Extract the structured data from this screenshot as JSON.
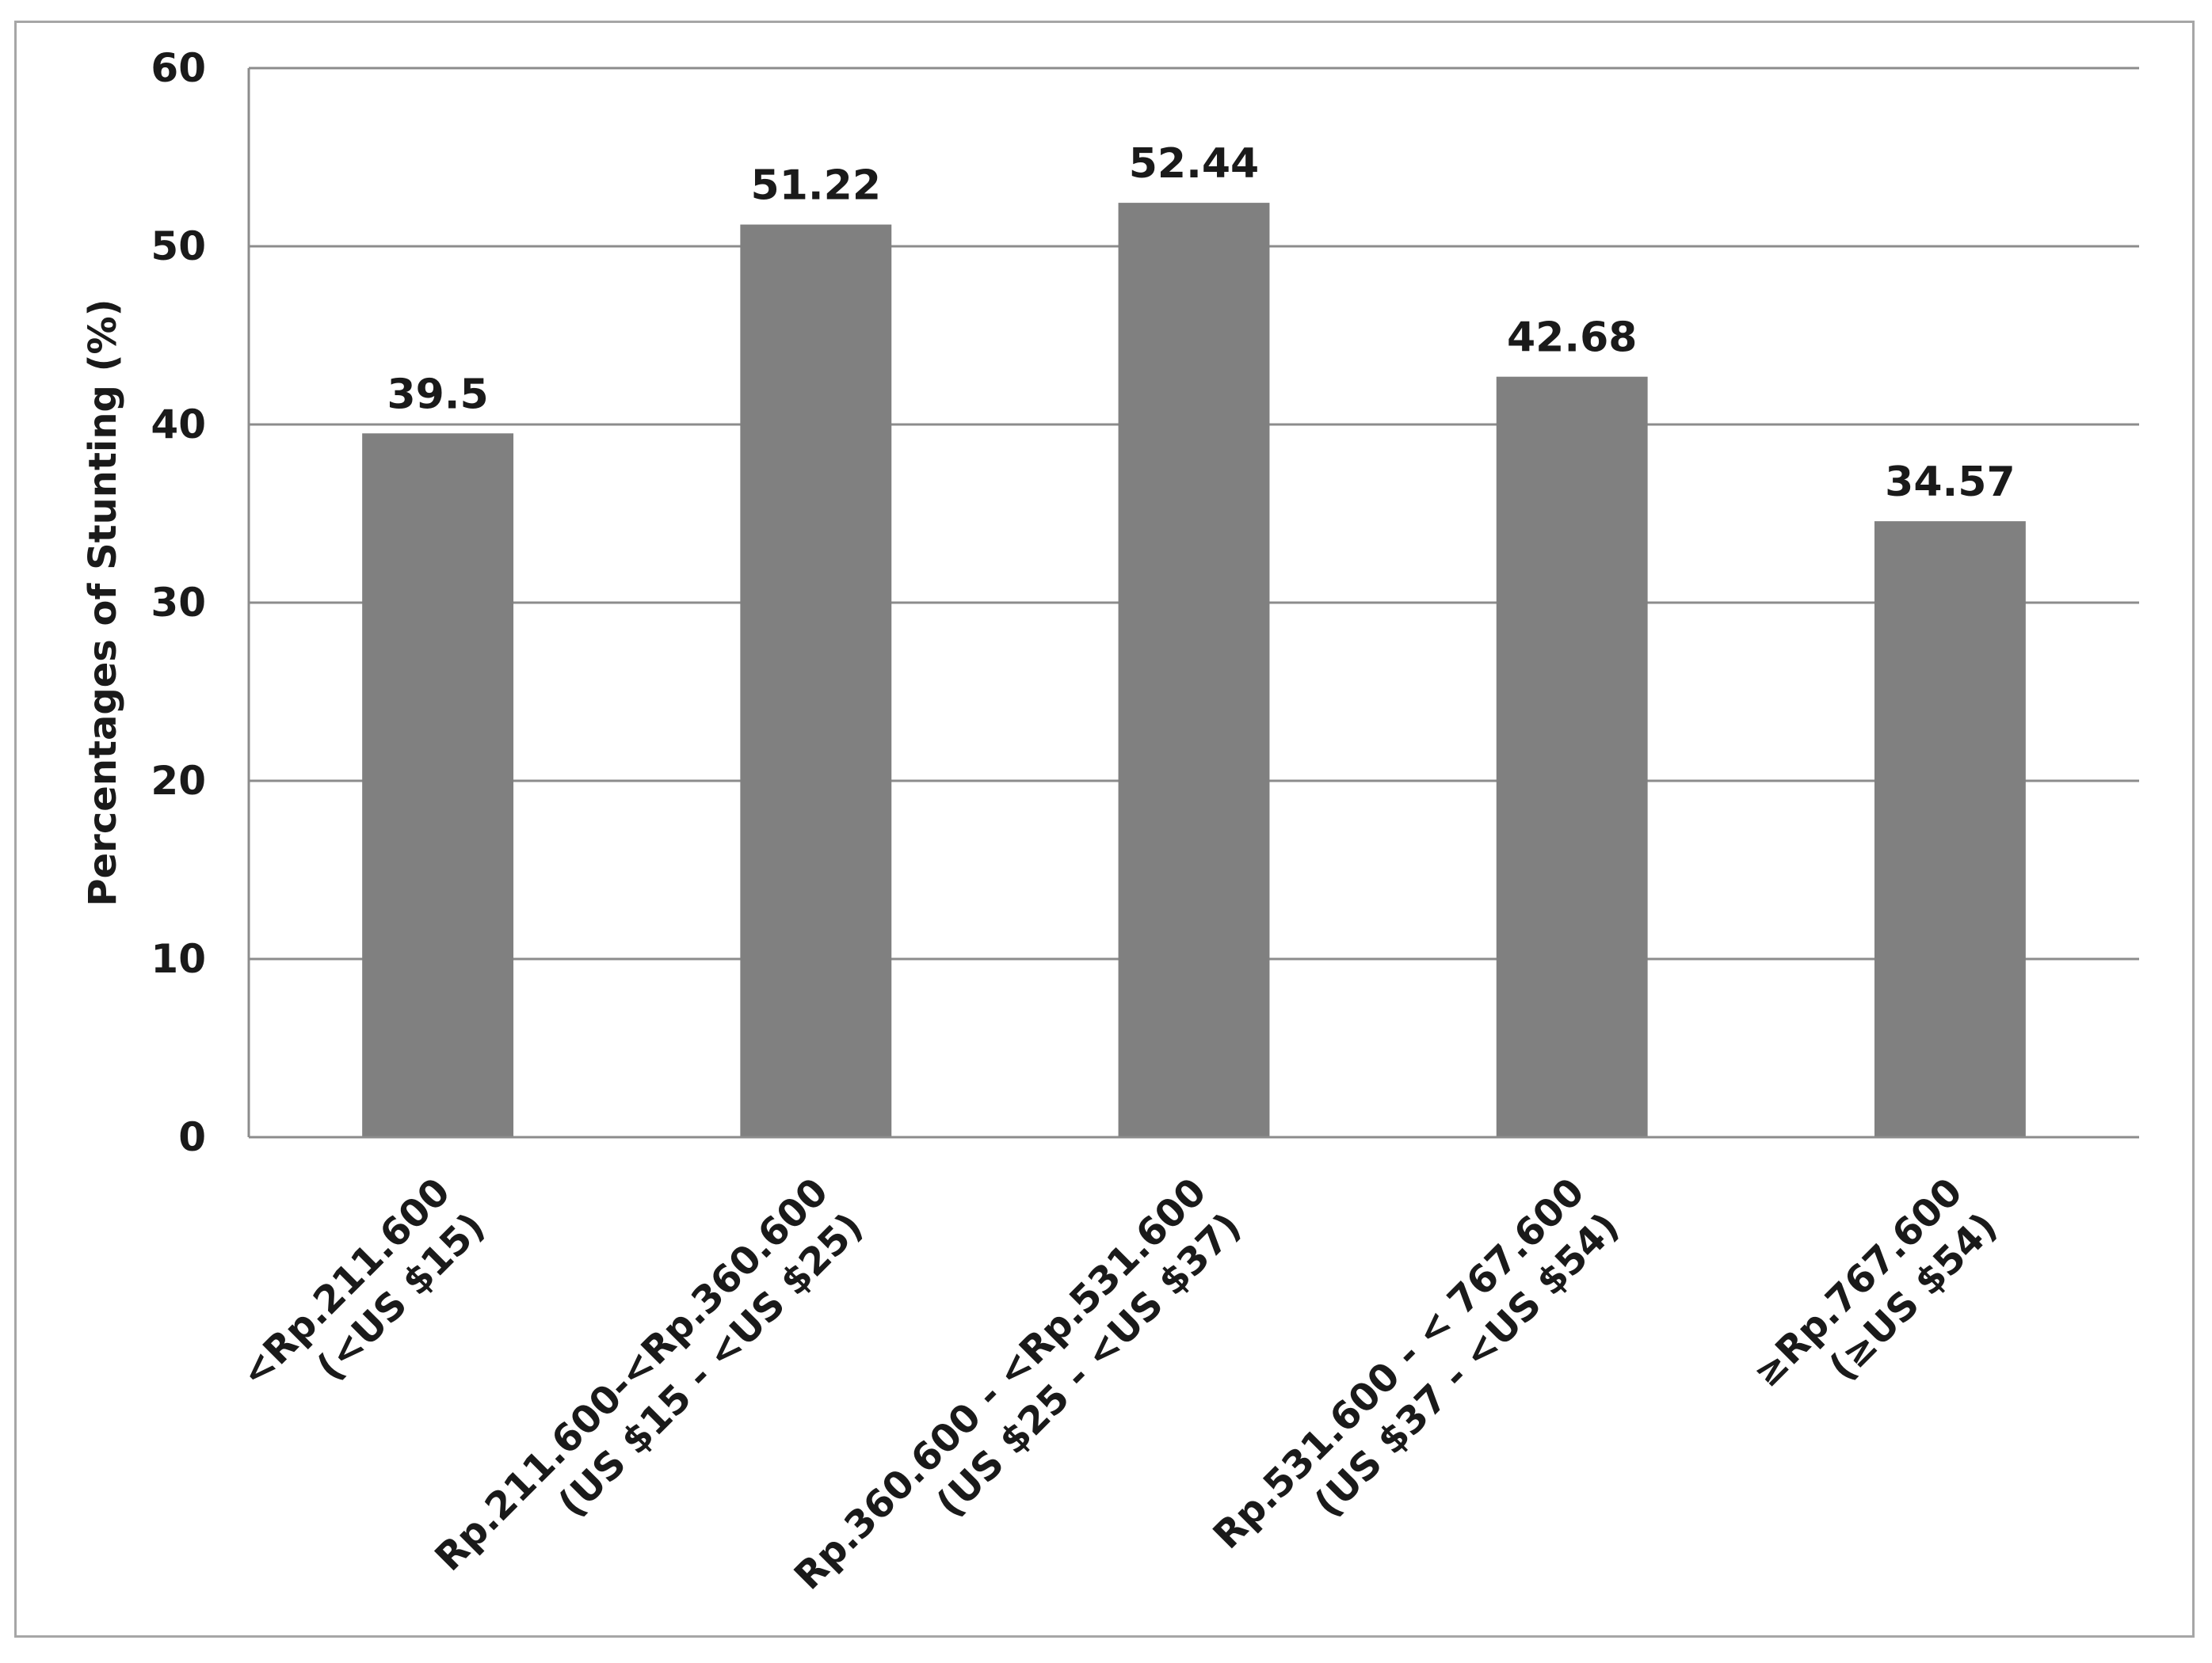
{
  "chart_data": {
    "type": "bar",
    "title": "",
    "xlabel": "",
    "ylabel": "Percentages of Stunting (%)",
    "ylim": [
      0,
      60
    ],
    "yticks": [
      0,
      10,
      20,
      30,
      40,
      50,
      60
    ],
    "grid": true,
    "legend": "none",
    "bar_color": "#808080",
    "categories": [
      {
        "line1": "<Rp.211.600",
        "line2": "(<US $15)"
      },
      {
        "line1": "Rp.211.600-<Rp.360.600",
        "line2": "(US $15 - <US $25)"
      },
      {
        "line1": "Rp.360.600 - <Rp.531.600",
        "line2": "(US $25 - <US $37)"
      },
      {
        "line1": "Rp.531.600 - < 767.600",
        "line2": "(US $37 - <US $54)"
      },
      {
        "line1": "≥Rp.767.600",
        "line2": "(≥US $54)"
      }
    ],
    "values": [
      39.5,
      51.22,
      52.44,
      42.68,
      34.57
    ],
    "value_labels": [
      "39.5",
      "51.22",
      "52.44",
      "42.68",
      "34.57"
    ]
  }
}
